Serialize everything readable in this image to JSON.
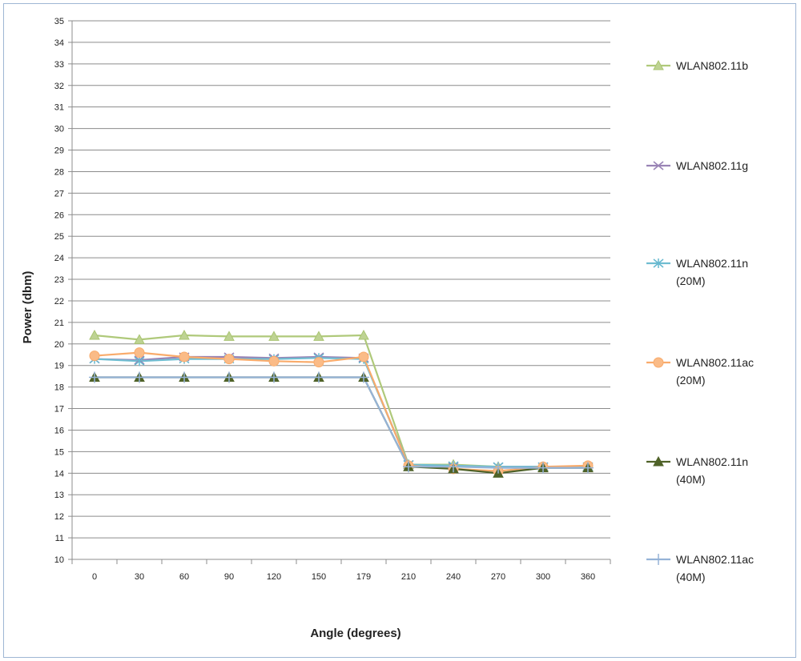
{
  "chart_data": {
    "type": "line",
    "title": "",
    "xlabel": "Angle (degrees)",
    "ylabel": "Power (dbm)",
    "categories": [
      "0",
      "30",
      "60",
      "90",
      "120",
      "150",
      "179",
      "210",
      "240",
      "270",
      "300",
      "360"
    ],
    "ylim": [
      10,
      35
    ],
    "ytick_step": 1,
    "grid": true,
    "legend_position": "right",
    "series": [
      {
        "name": "WLAN802.11b",
        "legend_lines": [
          "WLAN802.11b"
        ],
        "color": "#9bbb59",
        "marker": "triangle-light",
        "values": [
          20.4,
          20.2,
          20.4,
          20.35,
          20.35,
          20.35,
          20.4,
          14.4,
          14.4,
          14.3,
          14.3,
          14.3
        ]
      },
      {
        "name": "WLAN802.11g",
        "legend_lines": [
          "WLAN802.11g"
        ],
        "color": "#8064a2",
        "marker": "x",
        "values": [
          19.3,
          19.25,
          19.4,
          19.4,
          19.35,
          19.4,
          19.35,
          14.4,
          14.3,
          14.3,
          14.3,
          14.3
        ]
      },
      {
        "name": "WLAN802.11n (20M)",
        "legend_lines": [
          "WLAN802.11n",
          "(20M)"
        ],
        "color": "#4bacc6",
        "marker": "star",
        "values": [
          19.3,
          19.2,
          19.3,
          19.3,
          19.3,
          19.35,
          19.3,
          14.4,
          14.35,
          14.3,
          14.3,
          14.3
        ]
      },
      {
        "name": "WLAN802.11ac (20M)",
        "legend_lines": [
          "WLAN802.11ac",
          "(20M)"
        ],
        "color": "#f79646",
        "marker": "circle",
        "values": [
          19.45,
          19.6,
          19.4,
          19.3,
          19.2,
          19.15,
          19.4,
          14.35,
          14.2,
          14.1,
          14.3,
          14.35
        ]
      },
      {
        "name": "WLAN802.11n (40M)",
        "legend_lines": [
          "WLAN802.11n",
          "(40M)"
        ],
        "color": "#4f6228",
        "marker": "triangle-dark",
        "values": [
          18.45,
          18.45,
          18.45,
          18.45,
          18.45,
          18.45,
          18.45,
          14.3,
          14.2,
          14.0,
          14.25,
          14.25
        ]
      },
      {
        "name": "WLAN802.11ac (40M)",
        "legend_lines": [
          "WLAN802.11ac",
          "(40M)"
        ],
        "color": "#95b3d7",
        "marker": "plus",
        "values": [
          18.45,
          18.45,
          18.45,
          18.45,
          18.45,
          18.45,
          18.45,
          14.3,
          14.3,
          14.25,
          14.25,
          14.25
        ]
      }
    ]
  }
}
